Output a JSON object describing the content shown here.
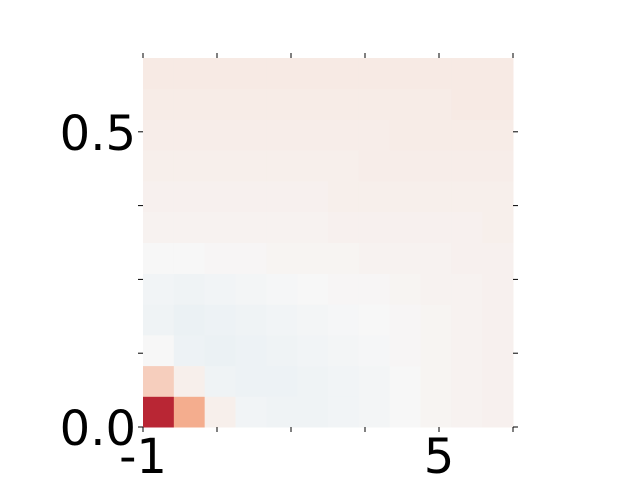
{
  "chart_data": {
    "type": "heatmap",
    "x": [
      -0.6875,
      -0.0625,
      0.5625,
      1.1875,
      1.8125,
      2.4375,
      3.0625,
      3.6875,
      4.3125,
      4.9375,
      5.5625,
      6.1875
    ],
    "y": [
      0.026,
      0.078,
      0.13,
      0.182,
      0.234,
      0.286,
      0.339,
      0.391,
      0.443,
      0.495,
      0.547,
      0.599
    ],
    "z": [
      [
        0.95,
        0.45,
        0.05,
        -0.03,
        -0.04,
        -0.04,
        -0.03,
        -0.02,
        0.0,
        0.02,
        0.03,
        0.04
      ],
      [
        0.25,
        0.05,
        -0.04,
        -0.05,
        -0.05,
        -0.04,
        -0.03,
        -0.02,
        0.0,
        0.02,
        0.03,
        0.04
      ],
      [
        0.0,
        -0.05,
        -0.06,
        -0.05,
        -0.04,
        -0.03,
        -0.02,
        -0.01,
        0.01,
        0.02,
        0.03,
        0.04
      ],
      [
        -0.04,
        -0.06,
        -0.05,
        -0.04,
        -0.03,
        -0.02,
        -0.01,
        0.0,
        0.01,
        0.02,
        0.03,
        0.04
      ],
      [
        -0.03,
        -0.04,
        -0.03,
        -0.02,
        -0.01,
        0.0,
        0.01,
        0.01,
        0.02,
        0.03,
        0.03,
        0.04
      ],
      [
        0.0,
        0.0,
        0.01,
        0.01,
        0.02,
        0.02,
        0.02,
        0.03,
        0.03,
        0.03,
        0.04,
        0.04
      ],
      [
        0.03,
        0.03,
        0.03,
        0.03,
        0.03,
        0.03,
        0.04,
        0.04,
        0.04,
        0.04,
        0.04,
        0.05
      ],
      [
        0.04,
        0.04,
        0.04,
        0.04,
        0.04,
        0.04,
        0.05,
        0.05,
        0.05,
        0.05,
        0.05,
        0.05
      ],
      [
        0.05,
        0.05,
        0.05,
        0.05,
        0.05,
        0.05,
        0.05,
        0.06,
        0.06,
        0.06,
        0.06,
        0.06
      ],
      [
        0.06,
        0.06,
        0.06,
        0.06,
        0.06,
        0.06,
        0.06,
        0.06,
        0.07,
        0.07,
        0.07,
        0.07
      ],
      [
        0.07,
        0.07,
        0.07,
        0.07,
        0.07,
        0.07,
        0.07,
        0.07,
        0.07,
        0.07,
        0.08,
        0.08
      ],
      [
        0.08,
        0.08,
        0.08,
        0.08,
        0.08,
        0.08,
        0.08,
        0.08,
        0.08,
        0.08,
        0.08,
        0.08
      ]
    ],
    "colorscale": [
      [
        -1,
        "#2166ac"
      ],
      [
        -0.5,
        "#92c5de"
      ],
      [
        0,
        "#f7f7f7"
      ],
      [
        0.5,
        "#f4a582"
      ],
      [
        1,
        "#b2182b"
      ]
    ],
    "xlim": [
      -1,
      6.5
    ],
    "ylim": [
      0,
      0.625
    ],
    "xticks": [
      -1,
      5
    ],
    "xminorticks": [
      0.5,
      2,
      3.5,
      6.5
    ],
    "yticks": [
      {
        "value": 0,
        "label": "0.0"
      },
      0.5
    ],
    "yminorticks": [
      0.125,
      0.25,
      0.375
    ]
  }
}
